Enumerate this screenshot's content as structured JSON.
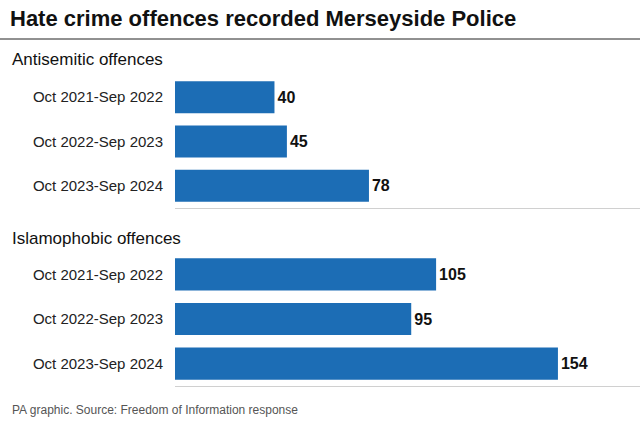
{
  "title": "Hate crime offences recorded Merseyside Police",
  "source": "PA graphic. Source: Freedom of Information response",
  "chart_data": [
    {
      "type": "bar",
      "title": "Antisemitic offences",
      "orientation": "horizontal",
      "categories": [
        "Oct 2021-Sep 2022",
        "Oct 2022-Sep 2023",
        "Oct 2023-Sep 2024"
      ],
      "values": [
        40,
        45,
        78
      ],
      "color": "#1c6db5",
      "xlim": [
        0,
        187
      ],
      "xticks": [],
      "grid": false,
      "data_labels": true,
      "tick_labels": "y"
    },
    {
      "type": "bar",
      "title": "Islamophobic offences",
      "orientation": "horizontal",
      "categories": [
        "Oct 2021-Sep 2022",
        "Oct 2022-Sep 2023",
        "Oct 2023-Sep 2024"
      ],
      "values": [
        105,
        95,
        154
      ],
      "color": "#1c6db5",
      "xlim": [
        0,
        187
      ],
      "xticks": [],
      "grid": false,
      "data_labels": true,
      "tick_labels": "y"
    }
  ]
}
